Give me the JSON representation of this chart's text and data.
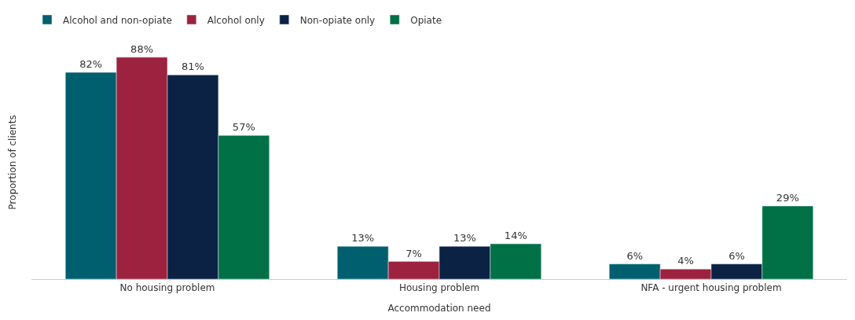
{
  "chart_data": {
    "type": "bar",
    "xlabel": "Accommodation need",
    "ylabel": "Proportion of clients",
    "categories": [
      "No housing problem",
      "Housing problem",
      "NFA - urgent housing problem"
    ],
    "series": [
      {
        "name": "Alcohol and non-opiate",
        "color": "#005f6e",
        "values": [
          82,
          13,
          6
        ],
        "value_labels": [
          "82%",
          "13%",
          "6%"
        ]
      },
      {
        "name": "Alcohol only",
        "color": "#9c223f",
        "values": [
          88,
          7,
          4
        ],
        "value_labels": [
          "88%",
          "7%",
          "4%"
        ]
      },
      {
        "name": "Non-opiate only",
        "color": "#0b2244",
        "values": [
          81,
          13,
          6
        ],
        "value_labels": [
          "81%",
          "13%",
          "6%"
        ]
      },
      {
        "name": "Opiate",
        "color": "#007047",
        "values": [
          57,
          14,
          29
        ],
        "value_labels": [
          "57%",
          "14%",
          "29%"
        ]
      }
    ],
    "legend": "top left"
  }
}
